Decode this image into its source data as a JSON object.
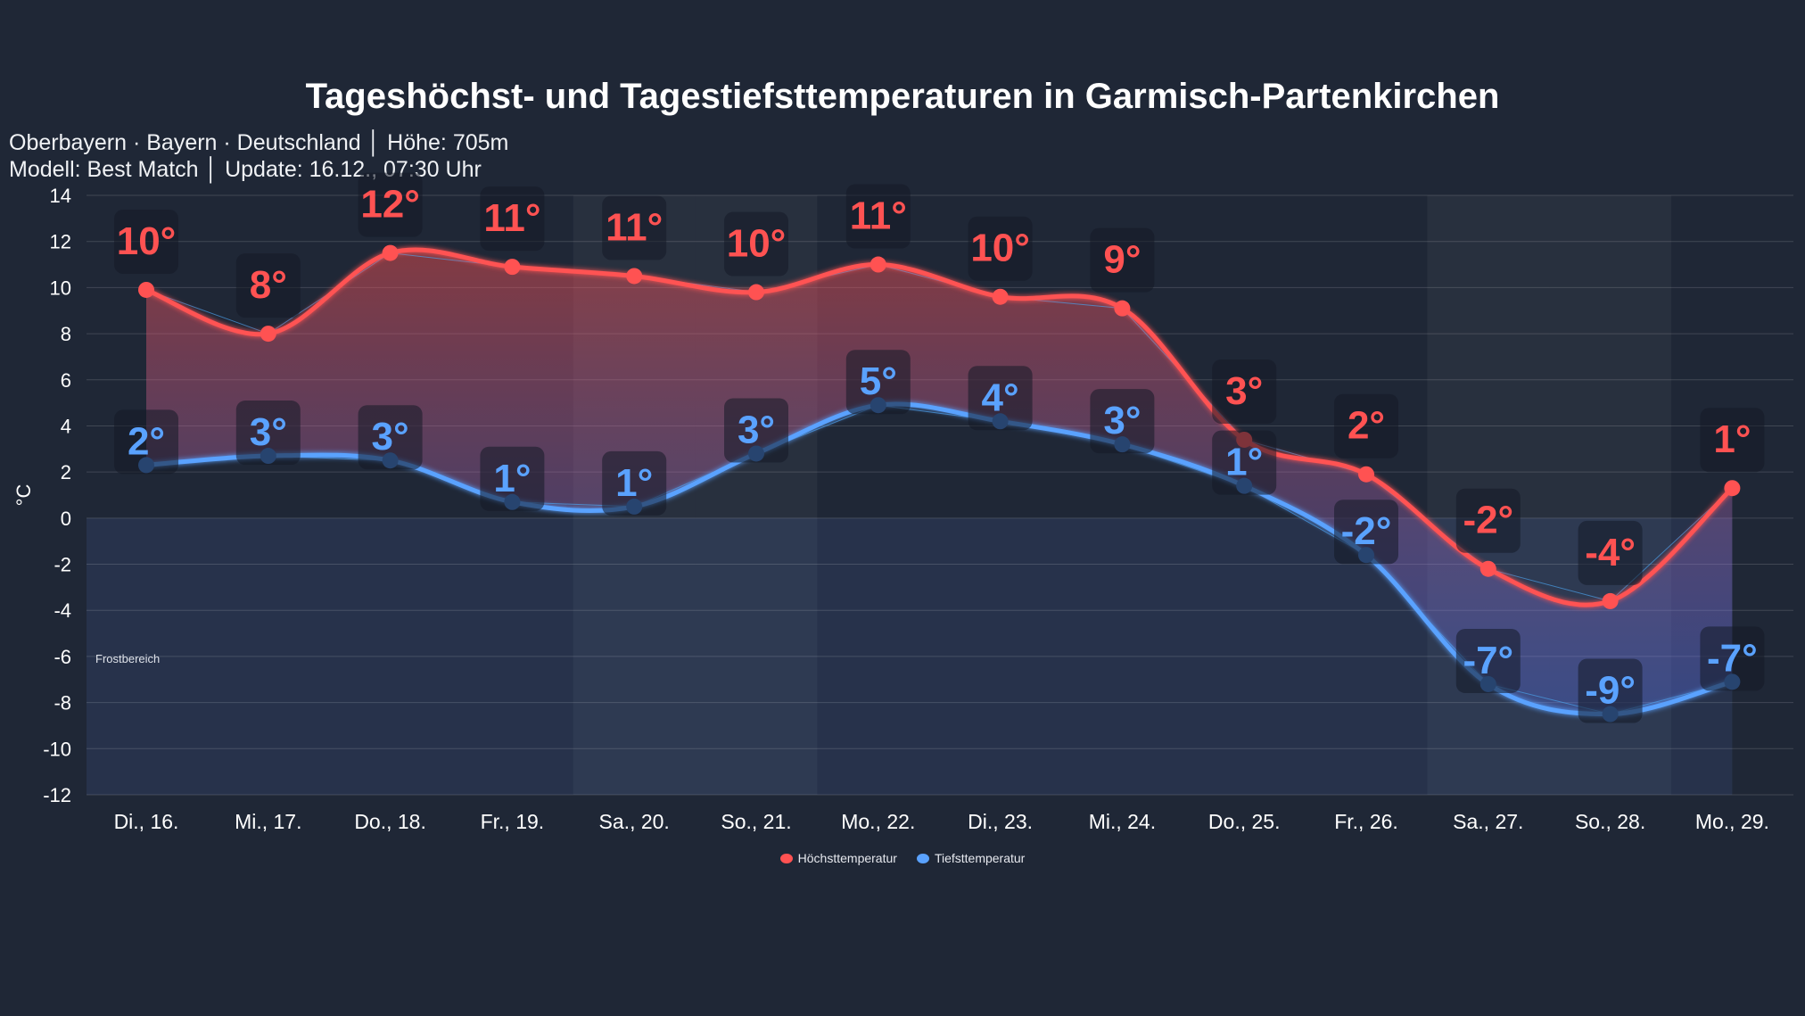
{
  "chart_data": {
    "type": "line",
    "title": "Tageshöchst- und Tagestiefsttemperaturen in Garmisch-Partenkirchen",
    "subtitle_lines": [
      "Oberbayern · Bayern · Deutschland │ Höhe: 705m",
      "Modell: Best Match │ Update: 16.12., 07:30 Uhr"
    ],
    "ylabel": "°C",
    "ylim": [
      -12,
      14
    ],
    "yticks": [
      14,
      12,
      10,
      8,
      6,
      4,
      2,
      0,
      -2,
      -4,
      -6,
      -8,
      -10,
      -12
    ],
    "grid": true,
    "categories": [
      "Di., 16.",
      "Mi., 17.",
      "Do., 18.",
      "Fr., 19.",
      "Sa., 20.",
      "So., 21.",
      "Mo., 22.",
      "Di., 23.",
      "Mi., 24.",
      "Do., 25.",
      "Fr., 26.",
      "Sa., 27.",
      "So., 28.",
      "Mo., 29."
    ],
    "weekend_categories": [
      "Sa., 20.",
      "So., 21.",
      "Sa., 27.",
      "So., 28."
    ],
    "series": [
      {
        "name": "Höchsttemperatur",
        "color": "#ff5252",
        "values": [
          9.9,
          8.0,
          11.5,
          10.9,
          10.5,
          9.8,
          11.0,
          9.6,
          9.1,
          3.4,
          1.9,
          -2.2,
          -3.6,
          1.3
        ],
        "labels": [
          "10°",
          "8°",
          "12°",
          "11°",
          "11°",
          "10°",
          "11°",
          "10°",
          "9°",
          "3°",
          "2°",
          "-2°",
          "-4°",
          "1°"
        ]
      },
      {
        "name": "Tiefsttemperatur",
        "color": "#5aa2ff",
        "values": [
          2.3,
          2.7,
          2.5,
          0.7,
          0.5,
          2.8,
          4.9,
          4.2,
          3.2,
          1.4,
          -1.6,
          -7.2,
          -8.5,
          -7.1
        ],
        "labels": [
          "2°",
          "3°",
          "3°",
          "1°",
          "1°",
          "3°",
          "5°",
          "4°",
          "3°",
          "1°",
          "-2°",
          "-7°",
          "-9°",
          "-7°"
        ]
      }
    ],
    "annotations": [
      {
        "text": "Frostbereich",
        "range": "below 0"
      }
    ],
    "legend": "bottom-center"
  }
}
